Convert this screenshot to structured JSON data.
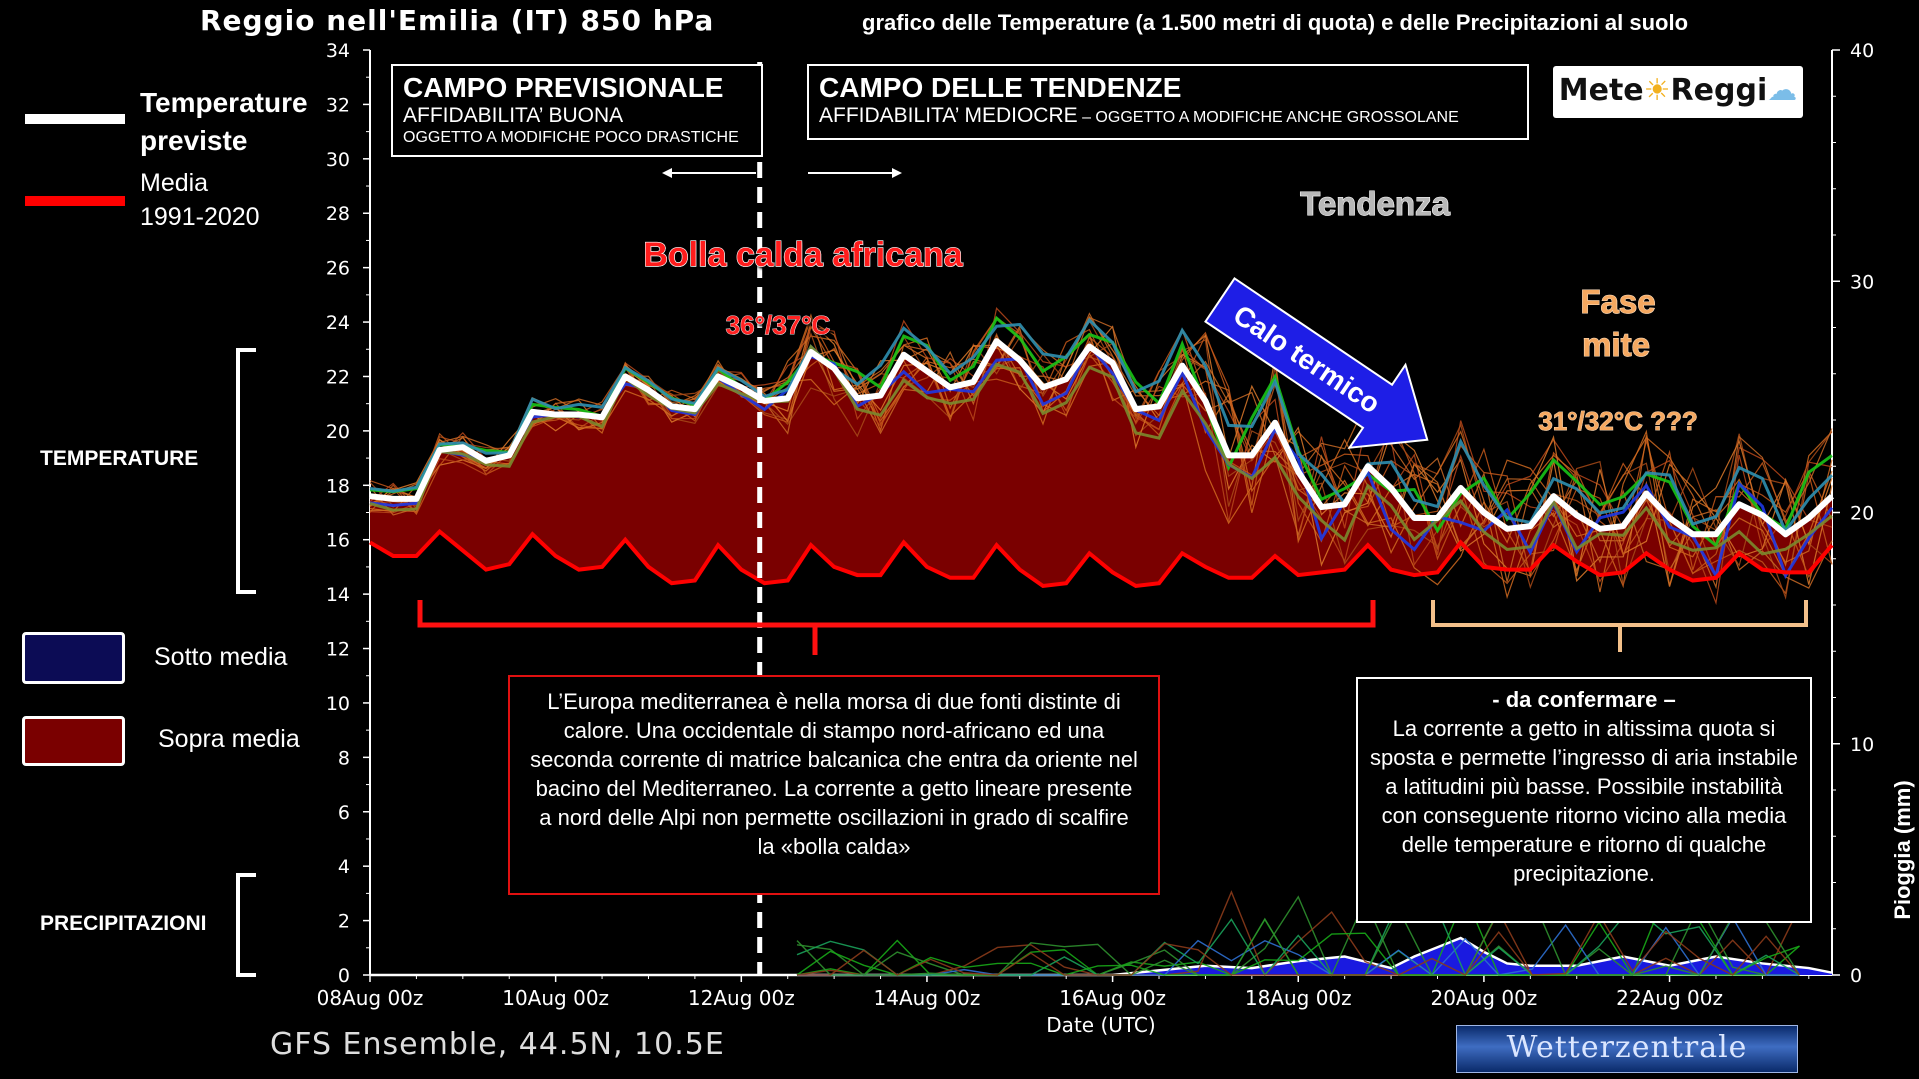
{
  "header": {
    "title": "Reggio nell'Emilia  (IT)  850 hPa",
    "subtitle": "grafico delle Temperature  (a 1.500 metri di quota) e delle Precipitazioni al suolo"
  },
  "legend": {
    "temp_label_1": "Temperature",
    "temp_label_2": "previste",
    "media_label_1": "Media",
    "media_label_2": "1991-2020",
    "sotto_label": "Sotto media",
    "sopra_label": "Sopra media",
    "temp_line_color": "#ffffff",
    "media_line_color": "#ff0000",
    "sotto_color": "#0c0c55",
    "sopra_color": "#7a0000"
  },
  "side_labels": {
    "temperature": "TEMPERATURE",
    "precipitazioni": "PRECIPITAZIONI"
  },
  "campo_previsionale": {
    "title": "CAMPO PREVISIONALE",
    "line1": "AFFIDABILITA’ BUONA",
    "line2": "OGGETTO A MODIFICHE POCO DRASTICHE"
  },
  "campo_tendenze": {
    "title": "CAMPO DELLE TENDENZE",
    "line1": "AFFIDABILITA’ MEDIOCRE",
    "line1_suffix": " – OGGETTO A MODIFICHE ANCHE GROSSOLANE"
  },
  "logo": {
    "text_a": "Mete",
    "text_b": "Reggi",
    "sun_icon": "sun-icon",
    "cloud_icon": "cloud-sun-icon"
  },
  "annotations": {
    "bolla": "Bolla calda africana",
    "peak_temp": "36°/37°C",
    "tendenza": "Tendenza",
    "calo": "Calo termico",
    "fase_1": "Fase",
    "fase_2": "mite",
    "mite_temp": "31°/32°C ???"
  },
  "note_left": {
    "text": "L’Europa mediterranea è nella morsa di due fonti distinte di calore. Una occidentale di stampo nord-africano ed una seconda corrente di matrice balcanica che entra da oriente nel bacino del Mediterraneo. La corrente a getto lineare presente a nord delle Alpi non permette oscillazioni in grado di scalfire la «bolla calda»"
  },
  "note_right": {
    "heading": "- da confermare –",
    "text": "La corrente a getto in altissima quota si sposta e permette l’ingresso di aria instabile a latitudini più basse. Possibile instabilità con conseguente ritorno vicino alla media delle temperature e ritorno di qualche precipitazione."
  },
  "footer": {
    "source": "GFS Ensemble, 44.5N, 10.5E",
    "brand": "Wetterzentrale"
  },
  "chart_data": {
    "type": "line",
    "xlabel": "Date (UTC)",
    "ylabel_left": "",
    "ylabel_right": "Pioggia (mm)",
    "ylim_left": [
      0,
      34
    ],
    "ylim_right": [
      0,
      40
    ],
    "y_ticks_left": [
      0,
      2,
      4,
      6,
      8,
      10,
      12,
      14,
      16,
      18,
      20,
      22,
      24,
      26,
      28,
      30,
      32,
      34
    ],
    "y_ticks_right": [
      0,
      10,
      20,
      30,
      40
    ],
    "x_range": [
      0,
      15.75
    ],
    "x_ticks": [
      {
        "day": 0,
        "label": "08Aug 00z"
      },
      {
        "day": 2,
        "label": "10Aug 00z"
      },
      {
        "day": 4,
        "label": "12Aug 00z"
      },
      {
        "day": 6,
        "label": "14Aug 00z"
      },
      {
        "day": 8,
        "label": "16Aug 00z"
      },
      {
        "day": 10,
        "label": "18Aug 00z"
      },
      {
        "day": 12,
        "label": "20Aug 00z"
      },
      {
        "day": 14,
        "label": "22Aug 00z"
      }
    ],
    "forecast_boundary_day": 4.5,
    "series": [
      {
        "name": "Temperature previste",
        "color": "#ffffff",
        "x": [
          0,
          0.25,
          0.5,
          0.75,
          1,
          1.25,
          1.5,
          1.75,
          2,
          2.25,
          2.5,
          2.75,
          3,
          3.25,
          3.5,
          3.75,
          4,
          4.25,
          4.5,
          4.75,
          5,
          5.25,
          5.5,
          5.75,
          6,
          6.25,
          6.5,
          6.75,
          7,
          7.25,
          7.5,
          7.75,
          8,
          8.25,
          8.5,
          8.75,
          9,
          9.25,
          9.5,
          9.75,
          10,
          10.25,
          10.5,
          10.75,
          11,
          11.25,
          11.5,
          11.75,
          12,
          12.25,
          12.5,
          12.75,
          13,
          13.25,
          13.5,
          13.75,
          14,
          14.25,
          14.5,
          14.75,
          15,
          15.25,
          15.5,
          15.75
        ],
        "values": [
          17.6,
          17.5,
          17.5,
          19.3,
          19.4,
          18.9,
          19.1,
          20.7,
          20.6,
          20.6,
          20.5,
          22.0,
          21.5,
          20.9,
          20.8,
          22.0,
          21.6,
          21.1,
          21.2,
          22.9,
          22.3,
          21.2,
          21.3,
          22.8,
          22.2,
          21.6,
          21.8,
          23.3,
          22.6,
          21.6,
          21.9,
          23.1,
          22.5,
          20.8,
          20.9,
          22.4,
          21.1,
          19.1,
          19.1,
          20.3,
          18.5,
          17.2,
          17.3,
          18.7,
          17.9,
          16.8,
          16.8,
          17.9,
          17.0,
          16.4,
          16.5,
          17.6,
          16.9,
          16.4,
          16.5,
          17.7,
          16.8,
          16.2,
          16.2,
          17.3,
          16.9,
          16.2,
          16.8,
          17.6
        ]
      },
      {
        "name": "Media 1991-2020",
        "color": "#ff0000",
        "x": [
          0,
          0.25,
          0.5,
          0.75,
          1,
          1.25,
          1.5,
          1.75,
          2,
          2.25,
          2.5,
          2.75,
          3,
          3.25,
          3.5,
          3.75,
          4,
          4.25,
          4.5,
          4.75,
          5,
          5.25,
          5.5,
          5.75,
          6,
          6.25,
          6.5,
          6.75,
          7,
          7.25,
          7.5,
          7.75,
          8,
          8.25,
          8.5,
          8.75,
          9,
          9.25,
          9.5,
          9.75,
          10,
          10.25,
          10.5,
          10.75,
          11,
          11.25,
          11.5,
          11.75,
          12,
          12.25,
          12.5,
          12.75,
          13,
          13.25,
          13.5,
          13.75,
          14,
          14.25,
          14.5,
          14.75,
          15,
          15.25,
          15.5,
          15.75
        ],
        "values": [
          15.9,
          15.4,
          15.4,
          16.3,
          15.6,
          14.9,
          15.1,
          16.2,
          15.4,
          14.9,
          15.0,
          16.0,
          15.0,
          14.4,
          14.5,
          15.8,
          14.9,
          14.4,
          14.5,
          15.8,
          15.0,
          14.7,
          14.7,
          15.9,
          15.0,
          14.6,
          14.6,
          15.8,
          14.9,
          14.3,
          14.4,
          15.5,
          14.8,
          14.3,
          14.4,
          15.5,
          15.0,
          14.6,
          14.6,
          15.4,
          14.7,
          14.8,
          14.9,
          15.8,
          14.9,
          14.7,
          14.8,
          15.9,
          15.0,
          14.9,
          14.9,
          15.8,
          15.2,
          14.7,
          14.8,
          15.5,
          14.9,
          14.5,
          14.6,
          15.5,
          14.9,
          14.8,
          14.8,
          15.8
        ]
      },
      {
        "name": "Pioggia",
        "color": "#2222ff",
        "axis": "right",
        "x": [
          0,
          1,
          2,
          3,
          4,
          5,
          6,
          7,
          7.5,
          8,
          8.5,
          9,
          9.5,
          10,
          10.5,
          11,
          11.25,
          11.5,
          11.75,
          12,
          12.25,
          12.5,
          13,
          13.25,
          13.5,
          13.75,
          14,
          14.25,
          14.5,
          15,
          15.5,
          15.75
        ],
        "values": [
          0,
          0,
          0,
          0,
          0,
          0,
          0,
          0,
          0,
          0,
          0.2,
          0.4,
          0.3,
          0.6,
          0.8,
          0.3,
          0.8,
          1.2,
          1.6,
          1.0,
          0.5,
          0.4,
          0.4,
          0.6,
          0.8,
          0.6,
          0.4,
          0.6,
          0.8,
          0.5,
          0.3,
          0.1
        ]
      }
    ]
  }
}
